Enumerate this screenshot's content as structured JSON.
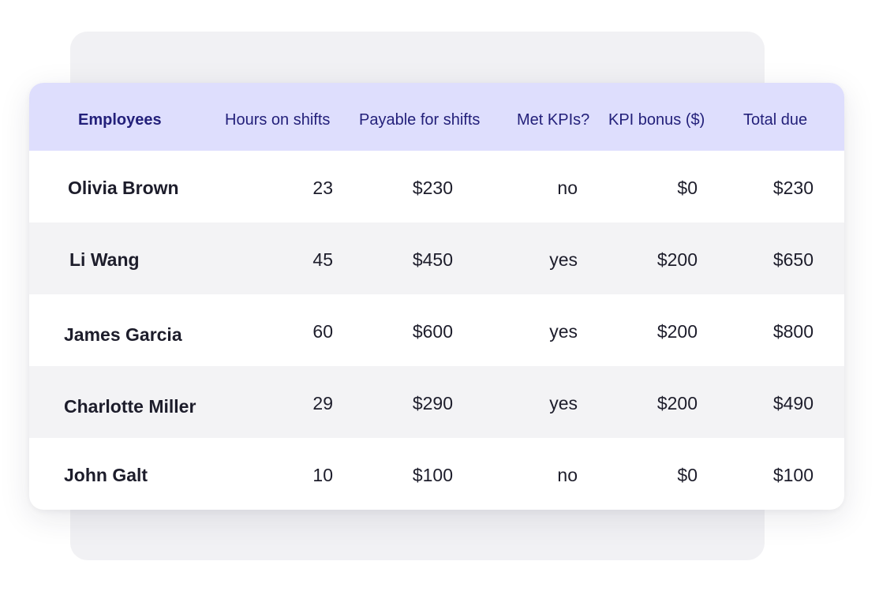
{
  "table": {
    "headers": [
      "Employees",
      "Hours on shifts",
      "Payable for shifts",
      "Met KPIs?",
      "KPI bonus ($)",
      "Total due"
    ],
    "rows": [
      [
        "Olivia Brown",
        "23",
        "$230",
        "no",
        "$0",
        "$230"
      ],
      [
        "Li Wang",
        "45",
        "$450",
        "yes",
        "$200",
        "$650"
      ],
      [
        "James Garcia",
        "60",
        "$600",
        "yes",
        "$200",
        "$800"
      ],
      [
        "Charlotte Miller",
        "29",
        "$290",
        "yes",
        "$200",
        "$490"
      ],
      [
        "John Galt",
        "10",
        "$100",
        "no",
        "$0",
        "$100"
      ]
    ]
  },
  "colors": {
    "header_background": "#dedefd",
    "header_text": "#23207a",
    "row_alt_background": "#f3f3f5",
    "body_text": "#1d1d2b",
    "backdrop_card": "#f1f1f4"
  }
}
